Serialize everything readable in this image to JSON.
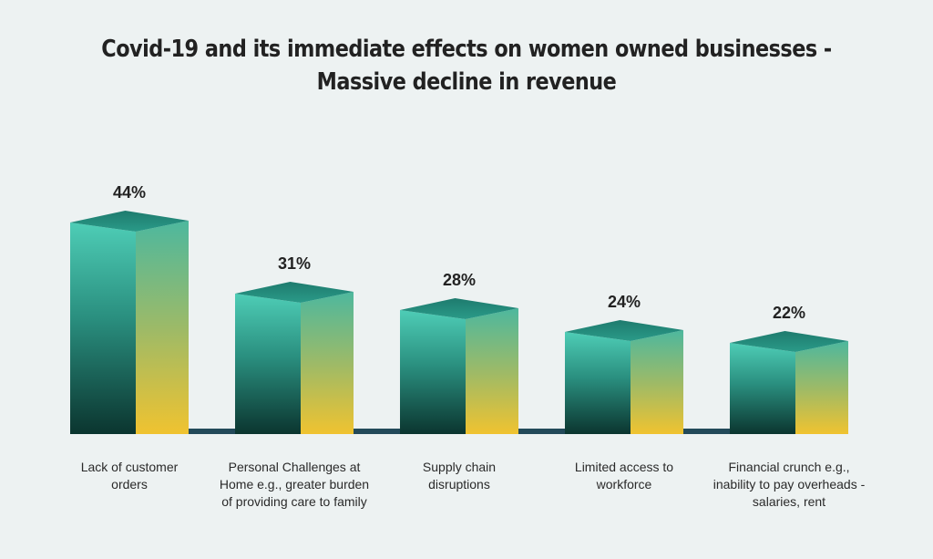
{
  "chart_data": {
    "type": "bar",
    "title_lines": [
      "Covid-19 and its immediate effects on women owned businesses -",
      "Massive decline in revenue"
    ],
    "categories": [
      [
        "Lack of customer",
        "orders"
      ],
      [
        "Personal Challenges at",
        "Home e.g., greater burden",
        "of providing care to family"
      ],
      [
        "Supply chain",
        "disruptions"
      ],
      [
        "Limited access to",
        "workforce"
      ],
      [
        "Financial crunch e.g.,",
        "inability to pay overheads -",
        "salaries, rent"
      ]
    ],
    "values": [
      44,
      31,
      28,
      24,
      22
    ],
    "data_labels": [
      "44%",
      "31%",
      "28%",
      "24%",
      "22%"
    ],
    "unit": "%",
    "xlabel": "",
    "ylabel": "",
    "grid": false,
    "legend": "none",
    "style": "3d-box",
    "colors": {
      "front_top": "#4ecdb6",
      "front_bottom": "#0b352f",
      "side_top": "#4db89e",
      "side_bottom": "#f0c330",
      "top_face": "#218a7c",
      "baseline": "#234a5a",
      "label_text": "#2a2a2a",
      "value_text": "#222222",
      "background": "#edf2f2"
    }
  }
}
